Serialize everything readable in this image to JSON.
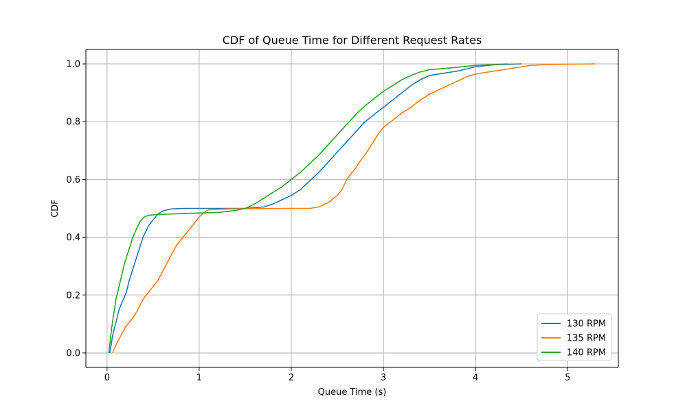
{
  "chart_data": {
    "type": "line",
    "title": "CDF of Queue Time for Different Request Rates",
    "xlabel": "Queue Time (s)",
    "ylabel": "CDF",
    "xlim": [
      -0.23,
      5.55
    ],
    "ylim": [
      -0.05,
      1.05
    ],
    "x_ticks": [
      0,
      1,
      2,
      3,
      4,
      5
    ],
    "y_ticks": [
      0.0,
      0.2,
      0.4,
      0.6,
      0.8,
      1.0
    ],
    "x_tick_labels": [
      "0",
      "1",
      "2",
      "3",
      "4",
      "5"
    ],
    "y_tick_labels": [
      "0.0",
      "0.2",
      "0.4",
      "0.6",
      "0.8",
      "1.0"
    ],
    "grid": true,
    "legend_position": "lower-right",
    "series": [
      {
        "name": "130 RPM",
        "color": "#1f77b4",
        "x": [
          0.03,
          0.06,
          0.1,
          0.13,
          0.17,
          0.21,
          0.24,
          0.28,
          0.32,
          0.36,
          0.39,
          0.42,
          0.45,
          0.5,
          0.55,
          0.6,
          0.65,
          0.7,
          0.75,
          0.85,
          1.0,
          1.1,
          1.3,
          1.5,
          1.7,
          1.8,
          1.9,
          2.0,
          2.1,
          2.2,
          2.3,
          2.4,
          2.5,
          2.6,
          2.7,
          2.8,
          2.9,
          3.0,
          3.1,
          3.2,
          3.3,
          3.4,
          3.5,
          3.6,
          3.8,
          4.0,
          4.2,
          4.5
        ],
        "y": [
          0.0,
          0.06,
          0.11,
          0.15,
          0.18,
          0.21,
          0.25,
          0.29,
          0.33,
          0.37,
          0.4,
          0.42,
          0.44,
          0.46,
          0.48,
          0.49,
          0.495,
          0.498,
          0.499,
          0.5,
          0.5,
          0.5,
          0.5,
          0.5,
          0.505,
          0.515,
          0.53,
          0.545,
          0.565,
          0.595,
          0.625,
          0.66,
          0.695,
          0.73,
          0.765,
          0.8,
          0.825,
          0.85,
          0.875,
          0.9,
          0.925,
          0.945,
          0.96,
          0.965,
          0.975,
          0.99,
          0.997,
          1.0
        ]
      },
      {
        "name": "135 RPM",
        "color": "#ff7f0e",
        "x": [
          0.06,
          0.1,
          0.15,
          0.2,
          0.25,
          0.3,
          0.35,
          0.4,
          0.45,
          0.5,
          0.55,
          0.6,
          0.65,
          0.7,
          0.75,
          0.8,
          0.85,
          0.9,
          0.95,
          1.0,
          1.05,
          1.1,
          1.3,
          1.6,
          2.0,
          2.2,
          2.3,
          2.4,
          2.5,
          2.55,
          2.6,
          2.65,
          2.7,
          2.75,
          2.8,
          2.85,
          2.9,
          2.95,
          3.0,
          3.1,
          3.2,
          3.3,
          3.4,
          3.5,
          3.6,
          3.7,
          3.8,
          3.9,
          4.0,
          4.2,
          4.4,
          4.6,
          4.8,
          5.0,
          5.3
        ],
        "y": [
          0.0,
          0.03,
          0.06,
          0.09,
          0.11,
          0.13,
          0.16,
          0.19,
          0.21,
          0.23,
          0.25,
          0.28,
          0.31,
          0.34,
          0.37,
          0.39,
          0.41,
          0.43,
          0.45,
          0.47,
          0.485,
          0.495,
          0.498,
          0.499,
          0.5,
          0.5,
          0.505,
          0.52,
          0.545,
          0.565,
          0.6,
          0.62,
          0.64,
          0.665,
          0.685,
          0.71,
          0.735,
          0.76,
          0.78,
          0.805,
          0.83,
          0.85,
          0.875,
          0.895,
          0.91,
          0.925,
          0.94,
          0.955,
          0.965,
          0.975,
          0.985,
          0.995,
          0.998,
          0.999,
          1.0
        ]
      },
      {
        "name": "140 RPM",
        "color": "#2ca02c",
        "x": [
          0.02,
          0.04,
          0.06,
          0.08,
          0.1,
          0.13,
          0.16,
          0.19,
          0.22,
          0.25,
          0.28,
          0.32,
          0.36,
          0.4,
          0.45,
          0.55,
          0.8,
          1.2,
          1.4,
          1.5,
          1.6,
          1.7,
          1.8,
          1.9,
          2.0,
          2.1,
          2.2,
          2.3,
          2.4,
          2.5,
          2.6,
          2.7,
          2.8,
          2.9,
          3.0,
          3.1,
          3.2,
          3.3,
          3.4,
          3.5,
          3.8,
          4.0,
          4.35
        ],
        "y": [
          0.0,
          0.06,
          0.11,
          0.15,
          0.19,
          0.23,
          0.27,
          0.31,
          0.34,
          0.37,
          0.4,
          0.43,
          0.455,
          0.47,
          0.476,
          0.479,
          0.482,
          0.486,
          0.493,
          0.5,
          0.515,
          0.535,
          0.555,
          0.575,
          0.6,
          0.625,
          0.655,
          0.685,
          0.72,
          0.755,
          0.79,
          0.825,
          0.855,
          0.88,
          0.905,
          0.925,
          0.945,
          0.96,
          0.972,
          0.98,
          0.988,
          0.995,
          1.0
        ]
      }
    ]
  }
}
